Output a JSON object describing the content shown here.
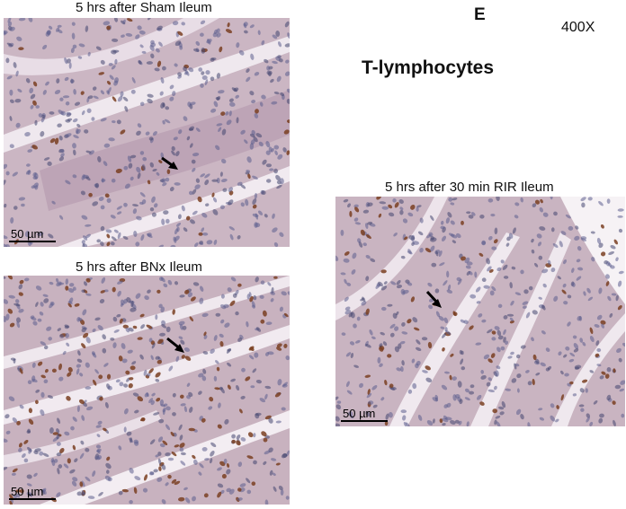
{
  "figure": {
    "panel_letter": "E",
    "magnification": "400X",
    "stain_title": "T-lymphocytes"
  },
  "panels": [
    {
      "id": "sham",
      "caption": "5 hrs after Sham Ileum",
      "scale_label": "50 µm",
      "stain_density": "low"
    },
    {
      "id": "bnx",
      "caption": "5 hrs after BNx Ileum",
      "scale_label": "50 µm",
      "stain_density": "high"
    },
    {
      "id": "rir",
      "caption": "5 hrs after 30 min RIR Ileum",
      "scale_label": "50 µm",
      "stain_density": "medium"
    }
  ],
  "colors": {
    "tissue_background": "#cdb8c4",
    "lamina": "#b99fb2",
    "nucleus_blue": "#5d5f8e",
    "nucleus_dark": "#43456f",
    "brown_stain": "#7a3f22",
    "lumen": "#efe8ee",
    "arrow": "#000000"
  }
}
